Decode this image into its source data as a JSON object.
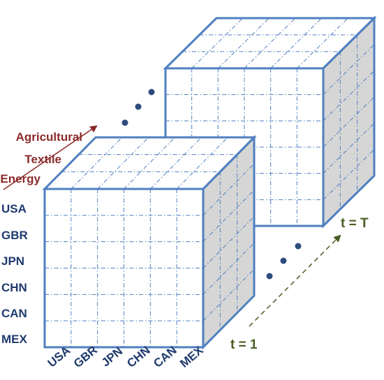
{
  "row_labels": [
    "USA",
    "GBR",
    "JPN",
    "CHN",
    "CAN",
    "MEX"
  ],
  "column_labels": [
    "USA",
    "GBR",
    "JPN",
    "CHN",
    "CAN",
    "MEX"
  ],
  "sector_labels": [
    "Agricultural",
    "Textile",
    "Energy"
  ],
  "time_labels": {
    "start": "t = 1",
    "end": "t = T"
  },
  "colors": {
    "cube_edge": "#4f7fc0",
    "side_face": "#d6d6d6",
    "country_text": "#1f3a6e",
    "sector_text": "#8b2b2b",
    "time_text": "#4a5d23",
    "dots": "#2e4d7d"
  }
}
